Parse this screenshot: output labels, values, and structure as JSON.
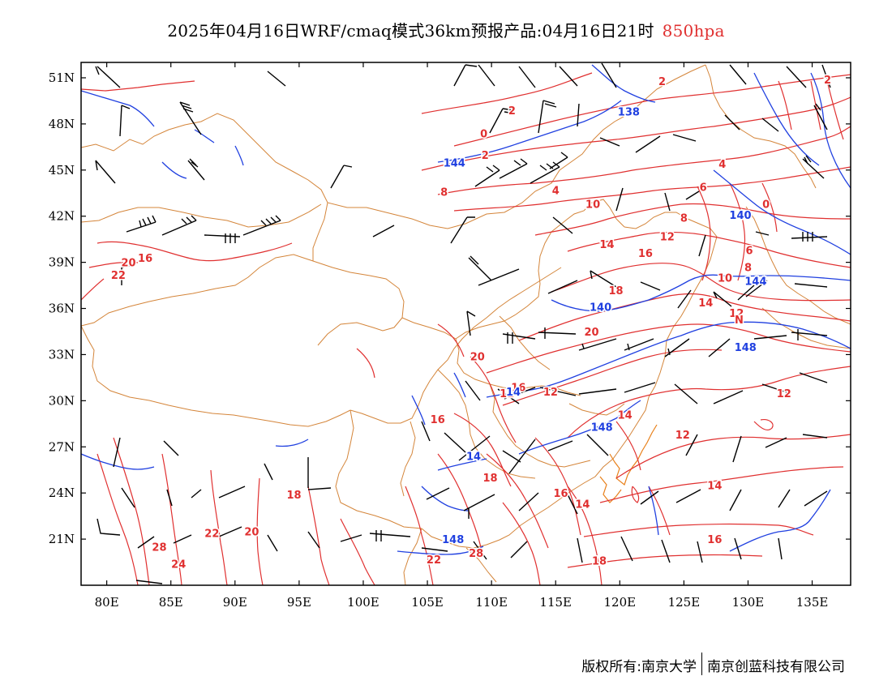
{
  "title": {
    "main": "2025年04月16日WRF/cmaq模式36km预报产品:04月16日21时",
    "level": "850hpa",
    "level_color": "#e03030"
  },
  "map": {
    "lon_range": [
      78,
      138
    ],
    "lat_range": [
      18,
      52
    ],
    "x_ticks": [
      {
        "lon": 80,
        "label": "80E"
      },
      {
        "lon": 85,
        "label": "85E"
      },
      {
        "lon": 90,
        "label": "90E"
      },
      {
        "lon": 95,
        "label": "95E"
      },
      {
        "lon": 100,
        "label": "100E"
      },
      {
        "lon": 105,
        "label": "105E"
      },
      {
        "lon": 110,
        "label": "110E"
      },
      {
        "lon": 115,
        "label": "115E"
      },
      {
        "lon": 120,
        "label": "120E"
      },
      {
        "lon": 125,
        "label": "125E"
      },
      {
        "lon": 130,
        "label": "130E"
      },
      {
        "lon": 135,
        "label": "135E"
      }
    ],
    "y_ticks": [
      {
        "lat": 51,
        "label": "51N"
      },
      {
        "lat": 48,
        "label": "48N"
      },
      {
        "lat": 45,
        "label": "45N"
      },
      {
        "lat": 42,
        "label": "42N"
      },
      {
        "lat": 39,
        "label": "39N"
      },
      {
        "lat": 36,
        "label": "36N"
      },
      {
        "lat": 33,
        "label": "33N"
      },
      {
        "lat": 30,
        "label": "30N"
      },
      {
        "lat": 27,
        "label": "27N"
      },
      {
        "lat": 24,
        "label": "24N"
      },
      {
        "lat": 21,
        "label": "21N"
      }
    ],
    "colors": {
      "temperature": "#e03030",
      "geopotential": "#2040e0",
      "boundaries": "#d4853a",
      "wind": "#000000"
    },
    "temperature_labels": [
      {
        "lon": 123.3,
        "lat": 50.8,
        "text": "2"
      },
      {
        "lon": 136.2,
        "lat": 50.9,
        "text": "2"
      },
      {
        "lon": 111.6,
        "lat": 48.9,
        "text": "2"
      },
      {
        "lon": 109.4,
        "lat": 47.4,
        "text": "0"
      },
      {
        "lon": 109.5,
        "lat": 46.0,
        "text": "2"
      },
      {
        "lon": 128.0,
        "lat": 45.4,
        "text": "4"
      },
      {
        "lon": 115.0,
        "lat": 43.7,
        "text": "4"
      },
      {
        "lon": 106.3,
        "lat": 43.6,
        "text": "8"
      },
      {
        "lon": 126.5,
        "lat": 43.9,
        "text": "6"
      },
      {
        "lon": 117.9,
        "lat": 42.8,
        "text": "10"
      },
      {
        "lon": 131.4,
        "lat": 42.8,
        "text": "0"
      },
      {
        "lon": 125.0,
        "lat": 41.9,
        "text": "8"
      },
      {
        "lon": 123.7,
        "lat": 40.7,
        "text": "12"
      },
      {
        "lon": 119.0,
        "lat": 40.2,
        "text": "14"
      },
      {
        "lon": 122.0,
        "lat": 39.6,
        "text": "16"
      },
      {
        "lon": 130.1,
        "lat": 39.8,
        "text": "6"
      },
      {
        "lon": 83.0,
        "lat": 39.3,
        "text": "16"
      },
      {
        "lon": 81.7,
        "lat": 39.0,
        "text": "20"
      },
      {
        "lon": 80.9,
        "lat": 38.2,
        "text": "22"
      },
      {
        "lon": 128.2,
        "lat": 38.0,
        "text": "10"
      },
      {
        "lon": 130.0,
        "lat": 38.7,
        "text": "8"
      },
      {
        "lon": 119.7,
        "lat": 37.2,
        "text": "18"
      },
      {
        "lon": 126.7,
        "lat": 36.4,
        "text": "14"
      },
      {
        "lon": 129.1,
        "lat": 35.7,
        "text": "12"
      },
      {
        "lon": 129.3,
        "lat": 35.3,
        "text": "N"
      },
      {
        "lon": 117.8,
        "lat": 34.5,
        "text": "20"
      },
      {
        "lon": 108.9,
        "lat": 32.9,
        "text": "20"
      },
      {
        "lon": 112.1,
        "lat": 30.9,
        "text": "16"
      },
      {
        "lon": 111.2,
        "lat": 30.5,
        "text": "11"
      },
      {
        "lon": 114.6,
        "lat": 30.6,
        "text": "12"
      },
      {
        "lon": 132.8,
        "lat": 30.5,
        "text": "12"
      },
      {
        "lon": 105.8,
        "lat": 28.8,
        "text": "16"
      },
      {
        "lon": 120.4,
        "lat": 29.1,
        "text": "14"
      },
      {
        "lon": 124.9,
        "lat": 27.8,
        "text": "12"
      },
      {
        "lon": 109.9,
        "lat": 25.0,
        "text": "18"
      },
      {
        "lon": 94.6,
        "lat": 23.9,
        "text": "18"
      },
      {
        "lon": 115.4,
        "lat": 24.0,
        "text": "16"
      },
      {
        "lon": 117.1,
        "lat": 23.3,
        "text": "14"
      },
      {
        "lon": 127.4,
        "lat": 24.5,
        "text": "14"
      },
      {
        "lon": 127.4,
        "lat": 21.0,
        "text": "16"
      },
      {
        "lon": 88.2,
        "lat": 21.4,
        "text": "22"
      },
      {
        "lon": 91.3,
        "lat": 21.5,
        "text": "20"
      },
      {
        "lon": 84.1,
        "lat": 20.5,
        "text": "28"
      },
      {
        "lon": 85.6,
        "lat": 19.4,
        "text": "24"
      },
      {
        "lon": 105.5,
        "lat": 19.7,
        "text": "22"
      },
      {
        "lon": 108.8,
        "lat": 20.1,
        "text": "28"
      },
      {
        "lon": 118.4,
        "lat": 19.6,
        "text": "18"
      }
    ],
    "geopotential_labels": [
      {
        "lon": 120.7,
        "lat": 48.8,
        "text": "138"
      },
      {
        "lon": 107.1,
        "lat": 45.5,
        "text": "144"
      },
      {
        "lon": 129.4,
        "lat": 42.1,
        "text": "140"
      },
      {
        "lon": 130.6,
        "lat": 37.8,
        "text": "144"
      },
      {
        "lon": 118.5,
        "lat": 36.1,
        "text": "140"
      },
      {
        "lon": 129.8,
        "lat": 33.5,
        "text": "148"
      },
      {
        "lon": 111.7,
        "lat": 30.6,
        "text": "14"
      },
      {
        "lon": 118.6,
        "lat": 28.3,
        "text": "148"
      },
      {
        "lon": 108.6,
        "lat": 26.4,
        "text": "14"
      },
      {
        "lon": 107.0,
        "lat": 21.0,
        "text": "148"
      }
    ]
  },
  "footer": {
    "left": "版权所有:南京大学",
    "right": "南京创蓝科技有限公司"
  }
}
